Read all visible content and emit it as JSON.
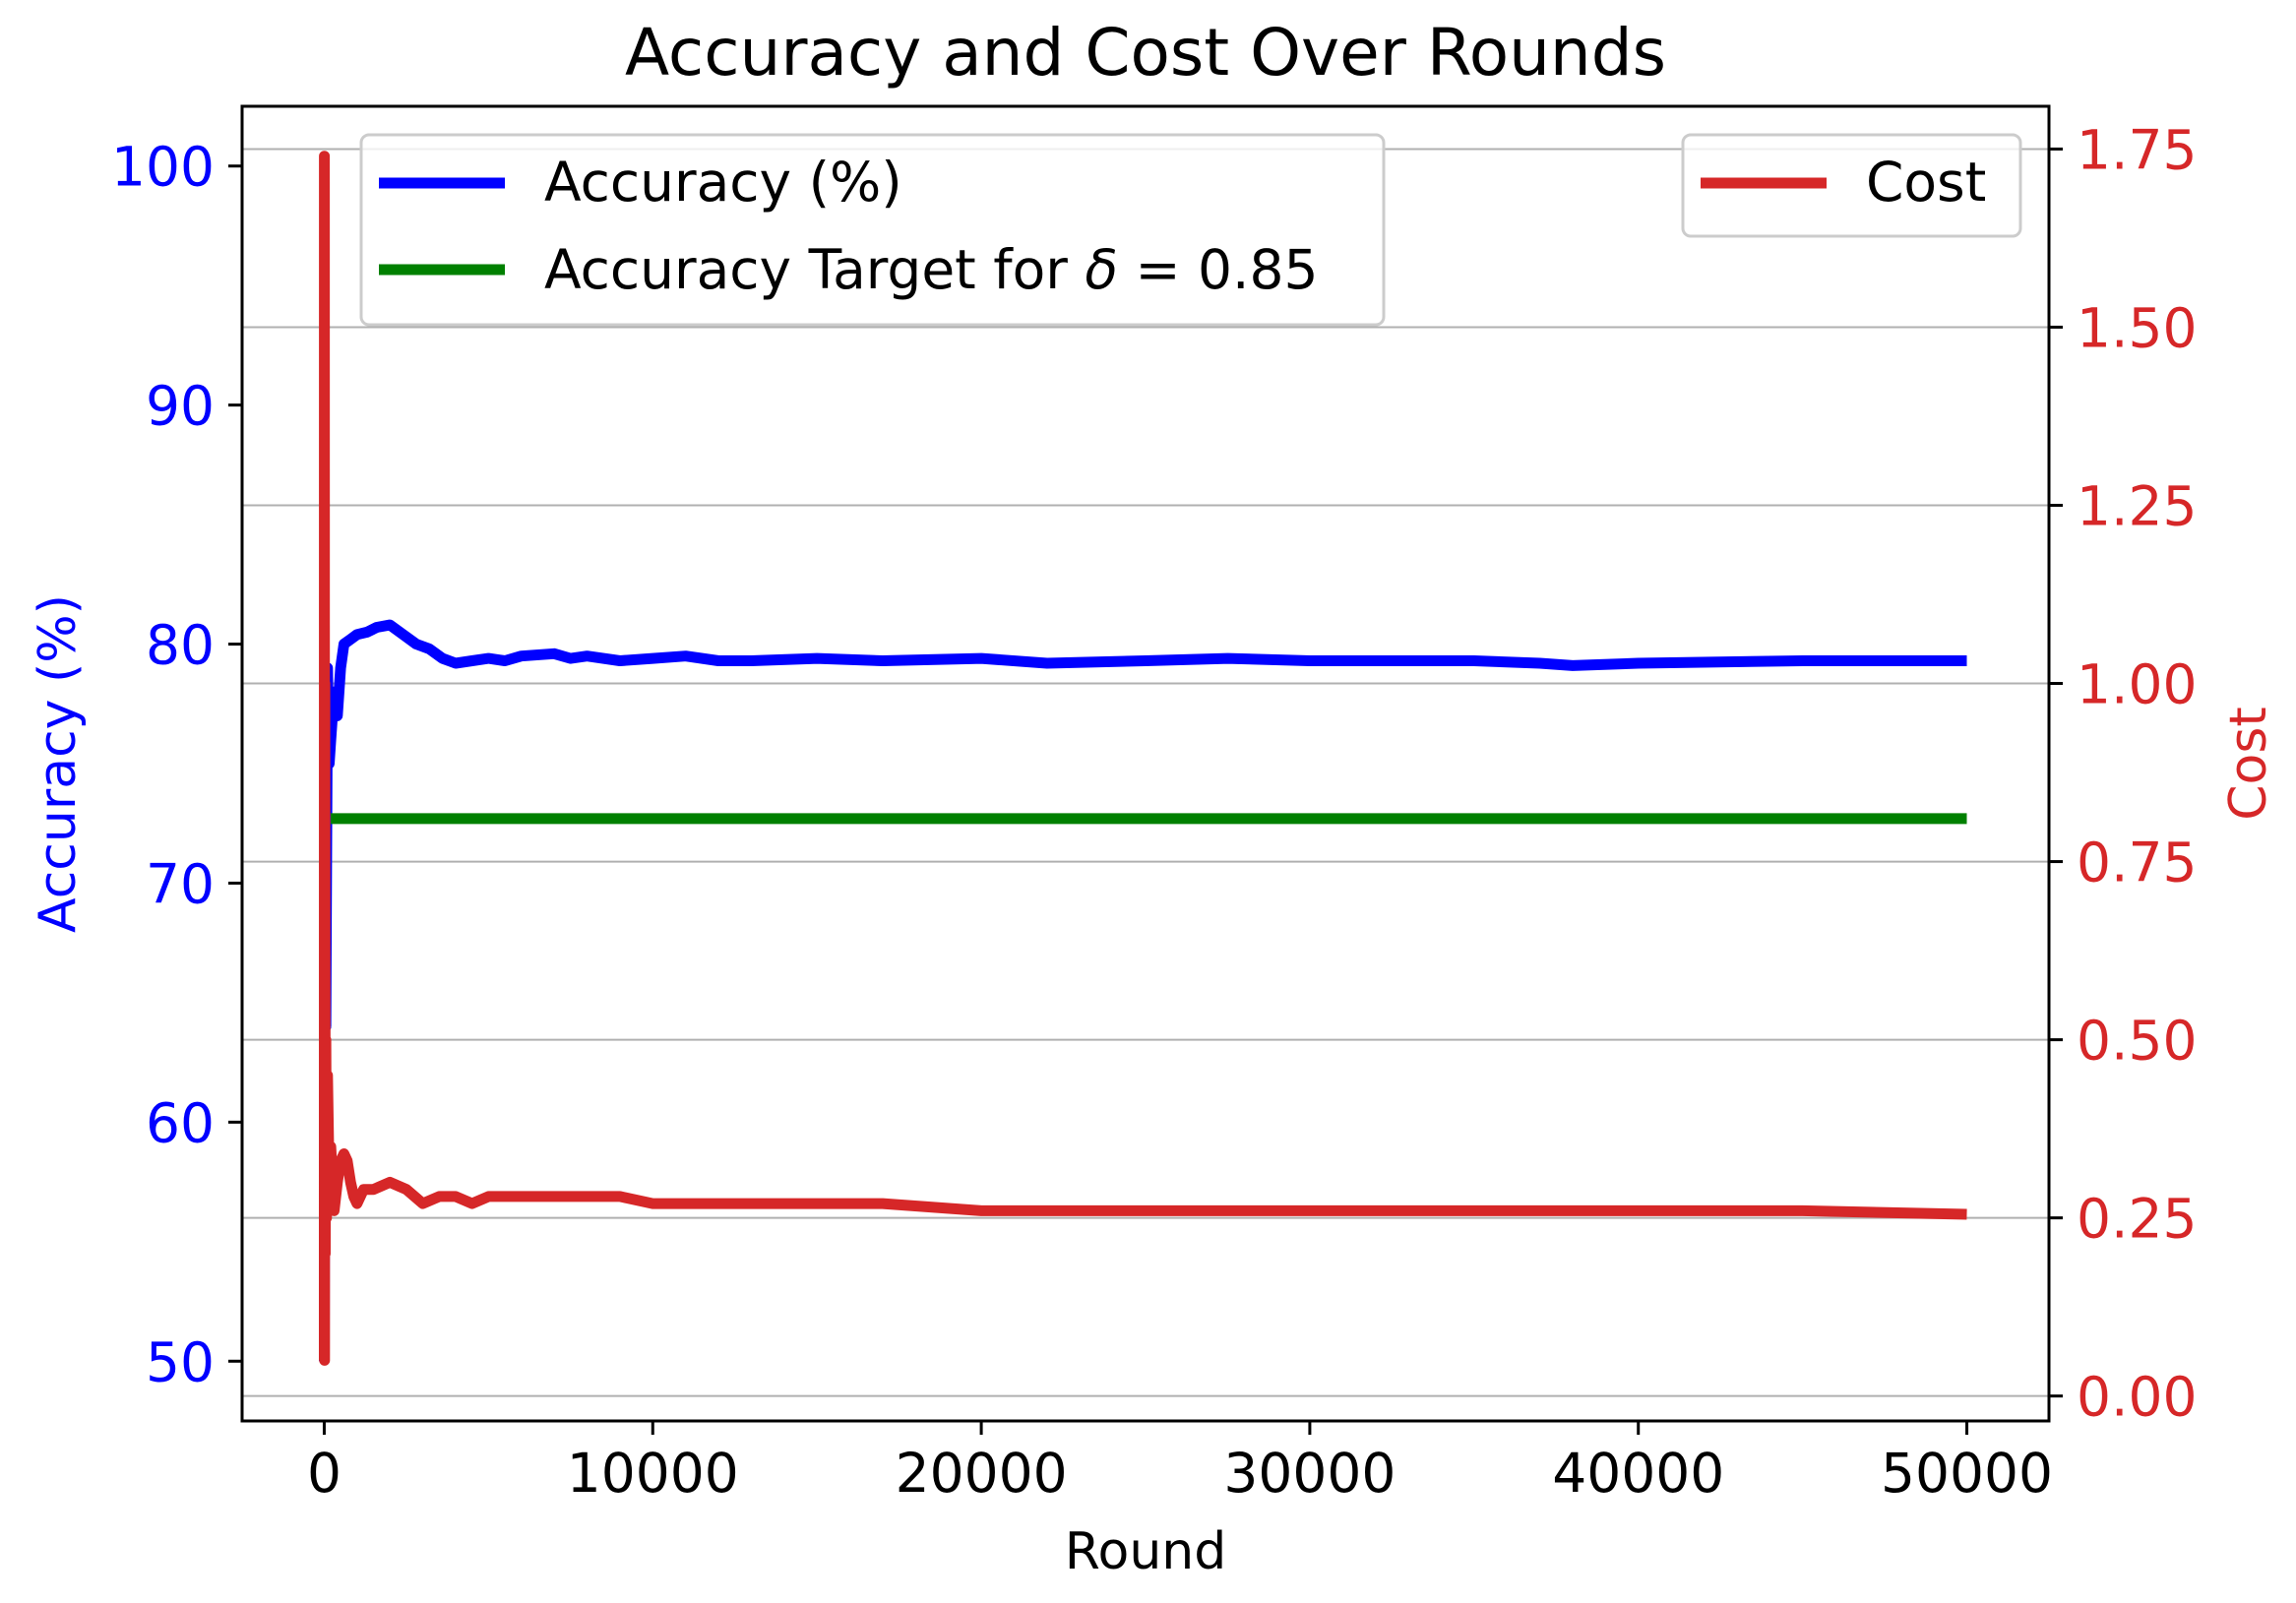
{
  "chart_data": {
    "type": "line",
    "title": "Accuracy and Cost Over Rounds",
    "xlabel": "Round",
    "ylabel_left": "Accuracy (%)",
    "ylabel_right": "Cost",
    "xlim": [
      -2500,
      52500
    ],
    "ylim_left": [
      47.5,
      102.5
    ],
    "ylim_right": [
      -0.035,
      1.81
    ],
    "x_ticks": [
      0,
      10000,
      20000,
      30000,
      40000,
      50000
    ],
    "x_tick_labels": [
      "0",
      "10000",
      "20000",
      "30000",
      "40000",
      "50000"
    ],
    "y_left_ticks": [
      50,
      60,
      70,
      80,
      90,
      100
    ],
    "y_left_tick_labels": [
      "50",
      "60",
      "70",
      "80",
      "90",
      "100"
    ],
    "y_right_ticks": [
      0.0,
      0.25,
      0.5,
      0.75,
      1.0,
      1.25,
      1.5,
      1.75
    ],
    "y_right_tick_labels": [
      "0.00",
      "0.25",
      "0.50",
      "0.75",
      "1.00",
      "1.25",
      "1.50",
      "1.75"
    ],
    "grid": "horizontal lines at right-axis ticks",
    "legends": [
      {
        "placement": "upper-left",
        "entries": [
          {
            "label": "Accuracy (%)",
            "series": "accuracy"
          },
          {
            "label_prefix": "Accuracy Target for ",
            "label_symbol": "δ",
            "label_suffix": " = 0.85",
            "series": "target"
          }
        ]
      },
      {
        "placement": "upper-right",
        "entries": [
          {
            "label": "Cost",
            "series": "cost"
          }
        ]
      }
    ],
    "colors": {
      "accuracy": "#0000ff",
      "target": "#008000",
      "cost": "#d62728",
      "grid": "#b0b0b0"
    },
    "series": [
      {
        "id": "accuracy",
        "name": "Accuracy (%)",
        "axis": "left",
        "x": [
          0,
          20,
          50,
          100,
          150,
          200,
          300,
          400,
          500,
          600,
          800,
          1000,
          1300,
          1600,
          2000,
          2400,
          2800,
          3200,
          3600,
          4000,
          4500,
          5000,
          5500,
          6000,
          7000,
          7500,
          8000,
          9000,
          10000,
          11000,
          12000,
          13000,
          15000,
          17000,
          20000,
          22000,
          25000,
          27500,
          30000,
          35000,
          37000,
          38000,
          40000,
          45000,
          50000
        ],
        "y": [
          50,
          70,
          64,
          79,
          75,
          76,
          78,
          77,
          79,
          80,
          80.2,
          80.4,
          80.5,
          80.7,
          80.8,
          80.4,
          80,
          79.8,
          79.4,
          79.2,
          79.3,
          79.4,
          79.3,
          79.5,
          79.6,
          79.4,
          79.5,
          79.3,
          79.4,
          79.5,
          79.3,
          79.3,
          79.4,
          79.3,
          79.4,
          79.2,
          79.3,
          79.4,
          79.3,
          79.3,
          79.2,
          79.1,
          79.2,
          79.3,
          79.3
        ]
      },
      {
        "id": "target",
        "name": "Accuracy Target for δ = 0.85",
        "axis": "left",
        "x": [
          200,
          50000
        ],
        "y": [
          72.7,
          72.7
        ]
      },
      {
        "id": "cost",
        "name": "Cost",
        "axis": "right",
        "x": [
          0,
          5,
          10,
          20,
          30,
          50,
          70,
          100,
          150,
          200,
          300,
          400,
          500,
          600,
          700,
          800,
          900,
          1000,
          1200,
          1500,
          2000,
          2500,
          3000,
          3500,
          4000,
          4500,
          5000,
          6000,
          7000,
          8000,
          9000,
          10000,
          12000,
          15000,
          17000,
          20000,
          25000,
          30000,
          35000,
          40000,
          45000,
          50000
        ],
        "y": [
          0.05,
          1.74,
          0.05,
          1.0,
          0.2,
          0.5,
          0.25,
          0.45,
          0.3,
          0.35,
          0.26,
          0.3,
          0.33,
          0.34,
          0.33,
          0.3,
          0.28,
          0.27,
          0.29,
          0.29,
          0.3,
          0.29,
          0.27,
          0.28,
          0.28,
          0.27,
          0.28,
          0.28,
          0.28,
          0.28,
          0.28,
          0.27,
          0.27,
          0.27,
          0.27,
          0.26,
          0.26,
          0.26,
          0.26,
          0.26,
          0.26,
          0.255
        ]
      }
    ]
  }
}
